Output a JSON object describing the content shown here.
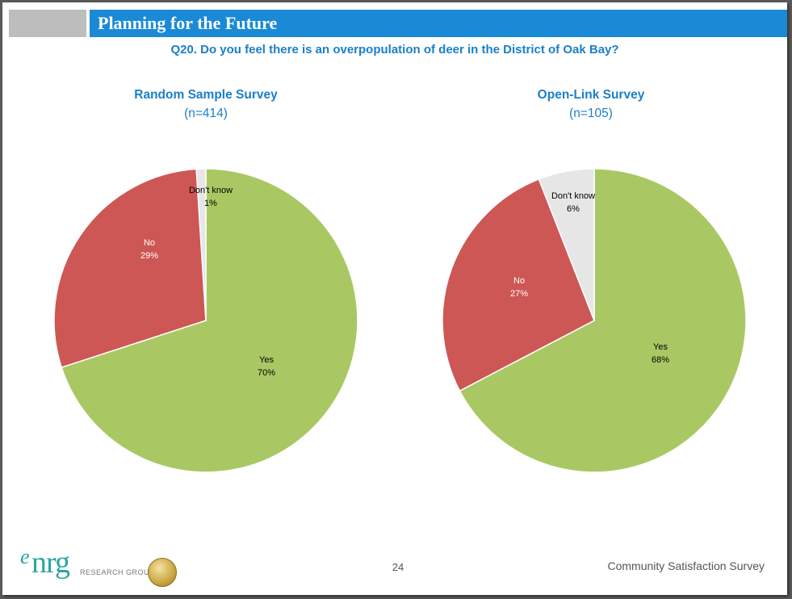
{
  "header": {
    "title": "Planning for the Future",
    "question": "Q20. Do you feel there is an overpopulation of deer in the District of Oak Bay?"
  },
  "charts_meta": [
    {
      "title": "Random Sample Survey",
      "n": "(n=414)"
    },
    {
      "title": "Open-Link Survey",
      "n": "(n=105)"
    }
  ],
  "chart_data": [
    {
      "type": "pie",
      "title": "Random Sample Survey",
      "subtitle": "(n=414)",
      "slices": [
        {
          "label": "Yes",
          "value": 70,
          "display": "70%",
          "color": "#a9c864",
          "label_color": "#000000"
        },
        {
          "label": "No",
          "value": 29,
          "display": "29%",
          "color": "#cd5755",
          "label_color": "#ffffff"
        },
        {
          "label": "Don't know",
          "value": 1,
          "display": "1%",
          "color": "#e6e6e6",
          "label_color": "#000000"
        }
      ]
    },
    {
      "type": "pie",
      "title": "Open-Link Survey",
      "subtitle": "(n=105)",
      "slices": [
        {
          "label": "Yes",
          "value": 68,
          "display": "68%",
          "color": "#a9c864",
          "label_color": "#000000"
        },
        {
          "label": "No",
          "value": 27,
          "display": "27%",
          "color": "#cd5755",
          "label_color": "#ffffff"
        },
        {
          "label": "Don't know",
          "value": 6,
          "display": "6%",
          "color": "#e6e6e6",
          "label_color": "#000000"
        }
      ]
    }
  ],
  "footer": {
    "page_number": "24",
    "report_name": "Community Satisfaction Survey",
    "logo_e": "e",
    "logo_nrg": "nrg",
    "logo_sub": "RESEARCH GROUP"
  }
}
